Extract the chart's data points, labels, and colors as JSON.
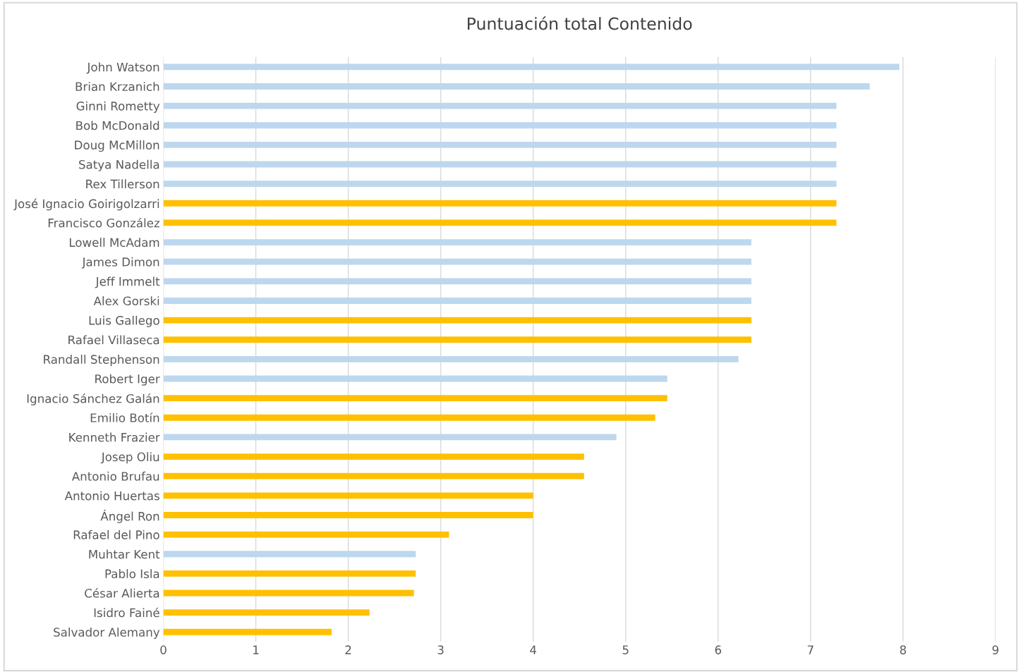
{
  "chart_data": {
    "type": "bar",
    "orientation": "horizontal",
    "title": "Puntuación total Contenido",
    "categories": [
      "John Watson",
      "Brian Krzanich",
      "Ginni Rometty",
      "Bob McDonald",
      "Doug McMillon",
      "Satya Nadella",
      "Rex Tillerson",
      "José Ignacio Goirigolzarri",
      "Francisco González",
      "Lowell McAdam",
      "James Dimon",
      "Jeff Immelt",
      "Alex Gorski",
      "Luis Gallego",
      "Rafael Villaseca",
      "Randall Stephenson",
      "Robert Iger",
      "Ignacio Sánchez Galán",
      "Emilio Botín",
      "Kenneth Frazier",
      "Josep Oliu",
      "Antonio Brufau",
      "Antonio Huertas",
      "Ángel Ron",
      "Rafael del Pino",
      "Muhtar Kent",
      "Pablo Isla",
      "César Alierta",
      "Isidro Fainé",
      "Salvador Alemany"
    ],
    "values": [
      7.96,
      7.64,
      7.28,
      7.28,
      7.28,
      7.28,
      7.28,
      7.28,
      7.28,
      6.36,
      6.36,
      6.36,
      6.36,
      6.36,
      6.36,
      6.22,
      5.45,
      5.45,
      5.32,
      4.9,
      4.55,
      4.55,
      4.0,
      4.0,
      3.09,
      2.73,
      2.73,
      2.71,
      2.23,
      1.82
    ],
    "colors": [
      "#bdd7ee",
      "#bdd7ee",
      "#bdd7ee",
      "#bdd7ee",
      "#bdd7ee",
      "#bdd7ee",
      "#bdd7ee",
      "#ffc000",
      "#ffc000",
      "#bdd7ee",
      "#bdd7ee",
      "#bdd7ee",
      "#bdd7ee",
      "#ffc000",
      "#ffc000",
      "#bdd7ee",
      "#bdd7ee",
      "#ffc000",
      "#ffc000",
      "#bdd7ee",
      "#ffc000",
      "#ffc000",
      "#ffc000",
      "#ffc000",
      "#ffc000",
      "#bdd7ee",
      "#ffc000",
      "#ffc000",
      "#ffc000",
      "#ffc000"
    ],
    "xlim": [
      0,
      9
    ],
    "xticks": [
      0,
      1,
      2,
      3,
      4,
      5,
      6,
      7,
      8,
      9
    ],
    "grid": "x",
    "legend": false
  }
}
